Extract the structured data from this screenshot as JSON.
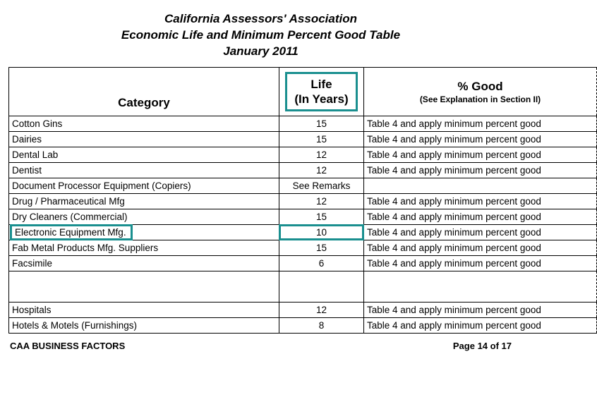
{
  "title": {
    "line1": "California Assessors' Association",
    "line2": "Economic Life and Minimum Percent Good Table",
    "line3": "January 2011"
  },
  "headers": {
    "category": "Category",
    "life_l1": "Life",
    "life_l2": "(In Years)",
    "good_l1": "% Good",
    "good_l2": "(See Explanation in Section II)"
  },
  "rows": [
    {
      "cat": "Cotton Gins",
      "life": "15",
      "good": "Table 4 and apply minimum percent good"
    },
    {
      "cat": "Dairies",
      "life": "15",
      "good": "Table 4 and apply minimum percent good"
    },
    {
      "cat": "Dental Lab",
      "life": "12",
      "good": "Table 4 and apply minimum percent good"
    },
    {
      "cat": "Dentist",
      "life": "12",
      "good": "Table 4 and apply minimum percent good"
    },
    {
      "cat": "Document Processor Equipment (Copiers)",
      "life": "See Remarks",
      "good": ""
    },
    {
      "cat": "Drug / Pharmaceutical Mfg",
      "life": "12",
      "good": "Table 4 and apply minimum percent good"
    },
    {
      "cat": "Dry Cleaners (Commercial)",
      "life": "15",
      "good": "Table 4 and apply minimum percent good"
    },
    {
      "cat": "Electronic Equipment Mfg.",
      "life": "10",
      "good": "Table 4 and apply minimum percent good"
    },
    {
      "cat": "Fab Metal Products Mfg. Suppliers",
      "life": "15",
      "good": "Table 4 and apply minimum percent good"
    },
    {
      "cat": "Facsimile",
      "life": "6",
      "good": "Table 4 and apply minimum percent good"
    },
    {
      "cat": "Hospitals",
      "life": "12",
      "good": "Table 4 and apply minimum percent good"
    },
    {
      "cat": "Hotels & Motels (Furnishings)",
      "life": "8",
      "good": "Table 4 and apply minimum percent good"
    }
  ],
  "highlightIndex": 7,
  "footer": {
    "left": "CAA BUSINESS FACTORS",
    "right": "Page 14 of 17"
  },
  "colors": {
    "highlight": "#1a8f8f",
    "text": "#000000",
    "background": "#ffffff"
  }
}
